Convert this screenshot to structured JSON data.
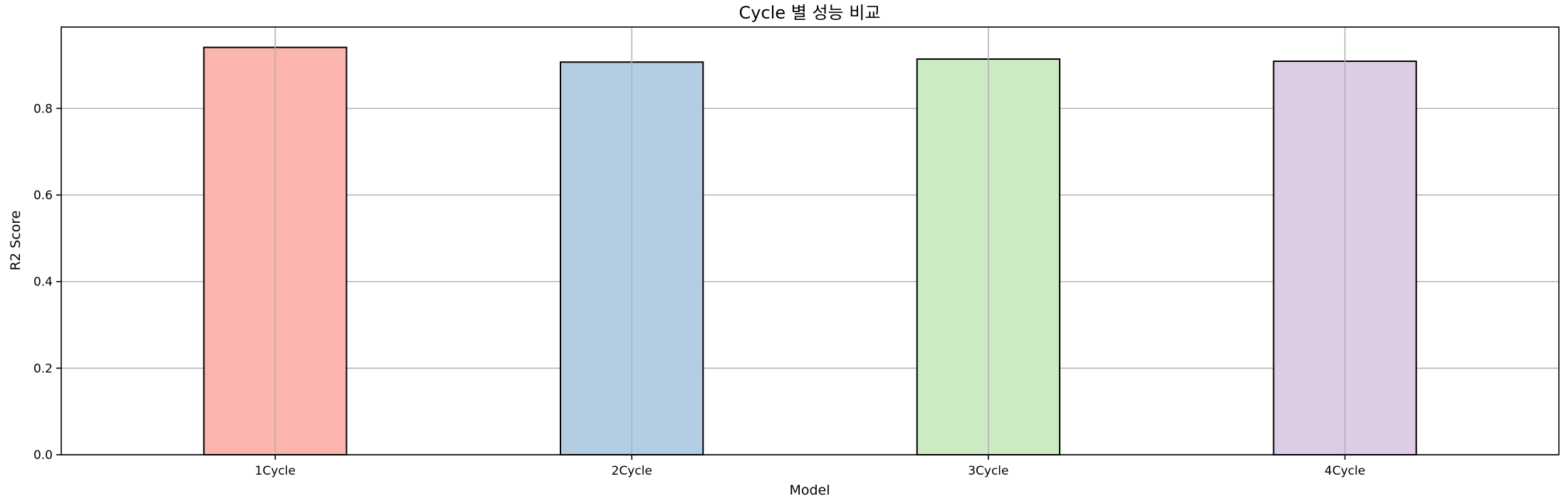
{
  "chart_data": {
    "type": "bar",
    "title": "Cycle 별 성능 비교",
    "xlabel": "Model",
    "ylabel": "R2 Score",
    "categories": [
      "1Cycle",
      "2Cycle",
      "3Cycle",
      "4Cycle"
    ],
    "values": [
      0.941,
      0.907,
      0.914,
      0.909
    ],
    "ylim": [
      0,
      0.988
    ],
    "yticks": [
      0.0,
      0.2,
      0.4,
      0.6,
      0.8
    ],
    "ytick_labels": [
      "0.0",
      "0.2",
      "0.4",
      "0.6",
      "0.8"
    ],
    "colors": [
      "#fbb4ae",
      "#b3cde3",
      "#ccebc5",
      "#decbe4"
    ],
    "grid": true,
    "legend": "none"
  }
}
